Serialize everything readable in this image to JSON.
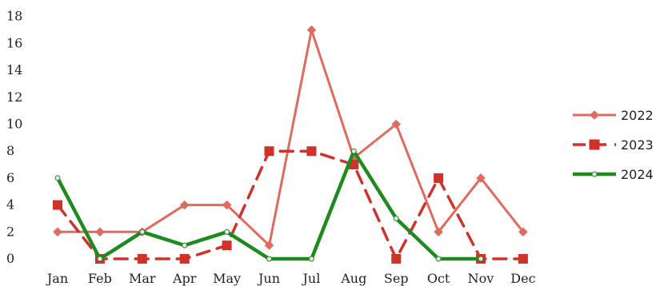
{
  "chart_data": {
    "type": "line",
    "title": "",
    "xlabel": "",
    "ylabel": "",
    "categories": [
      "Jan",
      "Feb",
      "Mar",
      "Apr",
      "May",
      "Jun",
      "Jul",
      "Aug",
      "Sep",
      "Oct",
      "Nov",
      "Dec"
    ],
    "yticks": [
      "0",
      "2",
      "4",
      "6",
      "8",
      "10",
      "12",
      "14",
      "16",
      "18"
    ],
    "ylim": [
      0,
      18
    ],
    "grid": false,
    "legend_position": "right",
    "series": [
      {
        "name": "2022",
        "color": "#e06a5e",
        "style": "solid",
        "marker": "diamond",
        "values": [
          2,
          2,
          2,
          4,
          4,
          1,
          17,
          7.5,
          10,
          2,
          6,
          2
        ]
      },
      {
        "name": "2023",
        "color": "#d0322a",
        "style": "dashed",
        "marker": "square",
        "values": [
          4,
          0,
          0,
          0,
          1,
          8,
          8,
          7,
          0,
          6,
          0,
          0
        ]
      },
      {
        "name": "2024",
        "color": "#1f8a1f",
        "style": "solid",
        "marker": "circle",
        "values": [
          6,
          0,
          2,
          1,
          2,
          0,
          0,
          8,
          3,
          0,
          0,
          null
        ]
      }
    ]
  }
}
